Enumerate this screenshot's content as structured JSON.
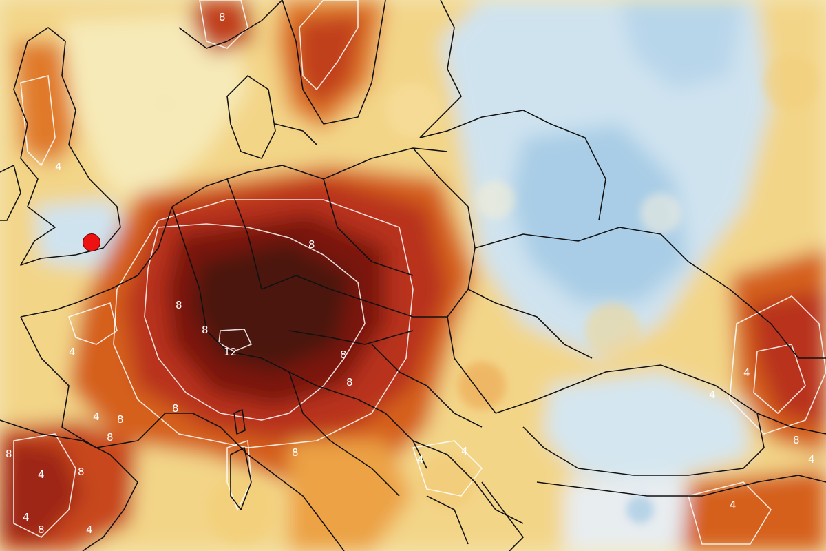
{
  "map": {
    "contour_labels": [
      "8",
      "4",
      "8",
      "8",
      "12",
      "8",
      "8",
      "8",
      "4",
      "8",
      "8",
      "8",
      "8",
      "4",
      "4",
      "8",
      "4",
      "8",
      "4",
      "4",
      "4",
      "4",
      "4",
      "8",
      "4",
      "4",
      "8"
    ],
    "colors": {
      "background": "#f3e7b8",
      "sea_cool": "#d7e8f2",
      "cold_blue": "#a9cde6",
      "pale": "#f6f1dc",
      "light_yellow": "#f5dc92",
      "yellow": "#f2c56a",
      "orange": "#e8902f",
      "dark_orange": "#d5601f",
      "red": "#b8301a",
      "dark_red": "#7a1810",
      "darkest": "#3c0d0a",
      "contour": "#ffffff",
      "borders": "#111111",
      "marker": "#ee1111"
    },
    "marker": {
      "icon": "red-dot-marker-icon"
    }
  }
}
